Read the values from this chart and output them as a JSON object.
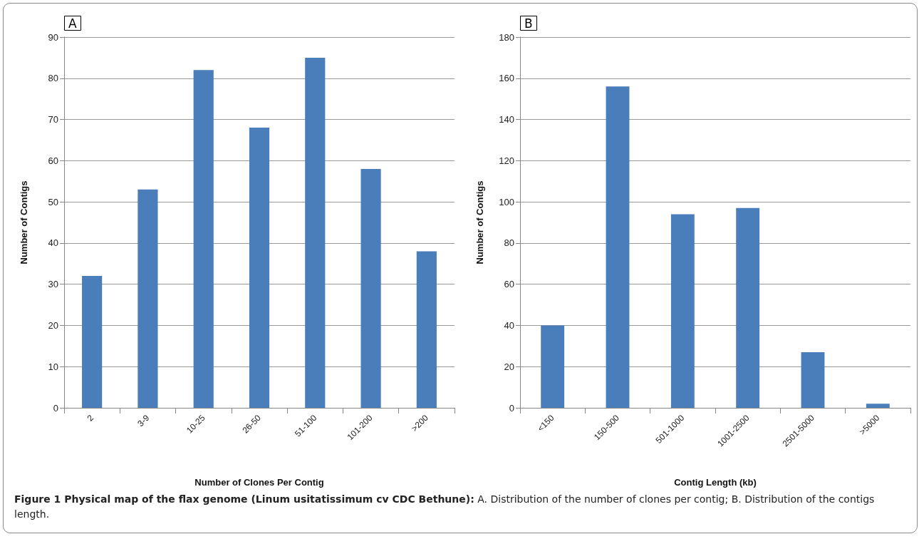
{
  "chart_data": [
    {
      "type": "bar",
      "title": "A",
      "xlabel": "Number of Clones Per Contig",
      "ylabel": "Number of Contigs",
      "categories": [
        "2",
        "3-9",
        "10-25",
        "26-50",
        "51-100",
        "101-200",
        ">200"
      ],
      "values": [
        32,
        53,
        82,
        68,
        85,
        58,
        38
      ],
      "color": "#4a7ebb",
      "ylim": [
        0,
        90
      ],
      "yticks": [
        0,
        10,
        20,
        30,
        40,
        50,
        60,
        70,
        80,
        90
      ],
      "grid": "y",
      "annotations": [
        "Figure 1 Physical map of the flax genome (Linum usitatissimum cv CDC Bethune):",
        "A. Distribution of the number of clones per contig; B. Distribution of the contigs length."
      ]
    },
    {
      "type": "bar",
      "title": "B",
      "xlabel": "Contig Length (kb)",
      "ylabel": "Number of Contigs",
      "categories": [
        "<150",
        "150-500",
        "501-1000",
        "1001-2500",
        "2501-5000",
        ">5000"
      ],
      "values": [
        40,
        156,
        94,
        97,
        27,
        2
      ],
      "color": "#4a7ebb",
      "ylim": [
        0,
        180
      ],
      "yticks": [
        0,
        20,
        40,
        60,
        80,
        100,
        120,
        140,
        160,
        180
      ],
      "grid": "y"
    }
  ]
}
